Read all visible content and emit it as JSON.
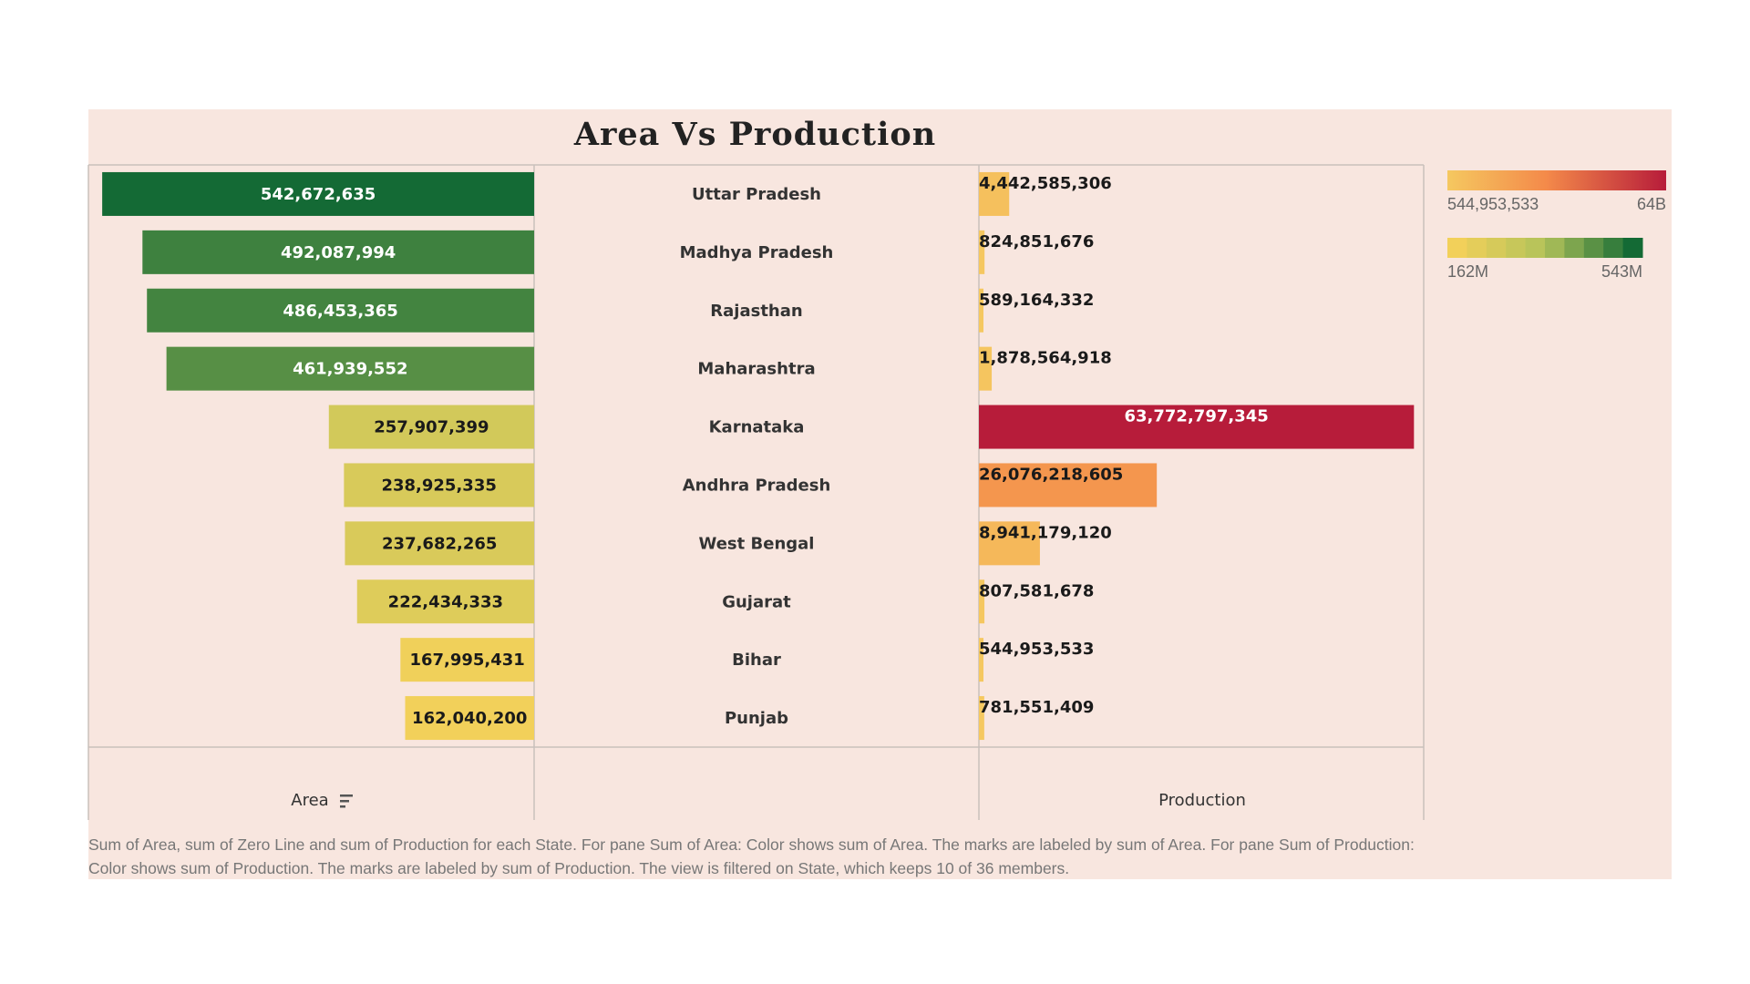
{
  "title": "Area Vs Production",
  "footer": "Sum of Area, sum of Zero Line and sum of Production for each State.  For pane Sum of Area:  Color shows sum of Area.  The marks are labeled by sum of Area.  For pane Sum of Production:  Color shows sum of Production.  The marks are labeled by sum of Production. The view is filtered on State, which keeps 10 of 36 members.",
  "legend": {
    "production": {
      "min_label": "544,953,533",
      "max_label": "64B"
    },
    "area": {
      "min_label": "162M",
      "max_label": "543M"
    }
  },
  "colors": {
    "area_low": "#f2d05a",
    "area_mid": "#b2c25a",
    "area_high": "#146a35",
    "prod_low": "#f5c860",
    "prod_mid": "#f48a4a",
    "prod_high": "#b71c3a"
  },
  "chart_data": {
    "type": "bar",
    "title": "Area Vs Production",
    "categories": [
      "Uttar Pradesh",
      "Madhya Pradesh",
      "Rajasthan",
      "Maharashtra",
      "Karnataka",
      "Andhra Pradesh",
      "West Bengal",
      "Gujarat",
      "Bihar",
      "Punjab"
    ],
    "series": [
      {
        "name": "Area",
        "values": [
          542672635,
          492087994,
          486453365,
          461939552,
          257907399,
          238925335,
          237682265,
          222434333,
          167995431,
          162040200
        ],
        "labels": [
          "542,672,635",
          "492,087,994",
          "486,453,365",
          "461,939,552",
          "257,907,399",
          "238,925,335",
          "237,682,265",
          "222,434,333",
          "167,995,431",
          "162,040,200"
        ]
      },
      {
        "name": "Production",
        "values": [
          4442585306,
          824851676,
          589164332,
          1878564918,
          63772797345,
          26076218605,
          8941179120,
          807581678,
          544953533,
          781551409
        ],
        "labels": [
          "4,442,585,306",
          "824,851,676",
          "589,164,332",
          "1,878,564,918",
          "63,772,797,345",
          "26,076,218,605",
          "8,941,179,120",
          "807,581,678",
          "544,953,533",
          "781,551,409"
        ]
      }
    ],
    "xlabel_left": "Area",
    "xlabel_right": "Production",
    "sort_indicator": "descending-on-area"
  }
}
